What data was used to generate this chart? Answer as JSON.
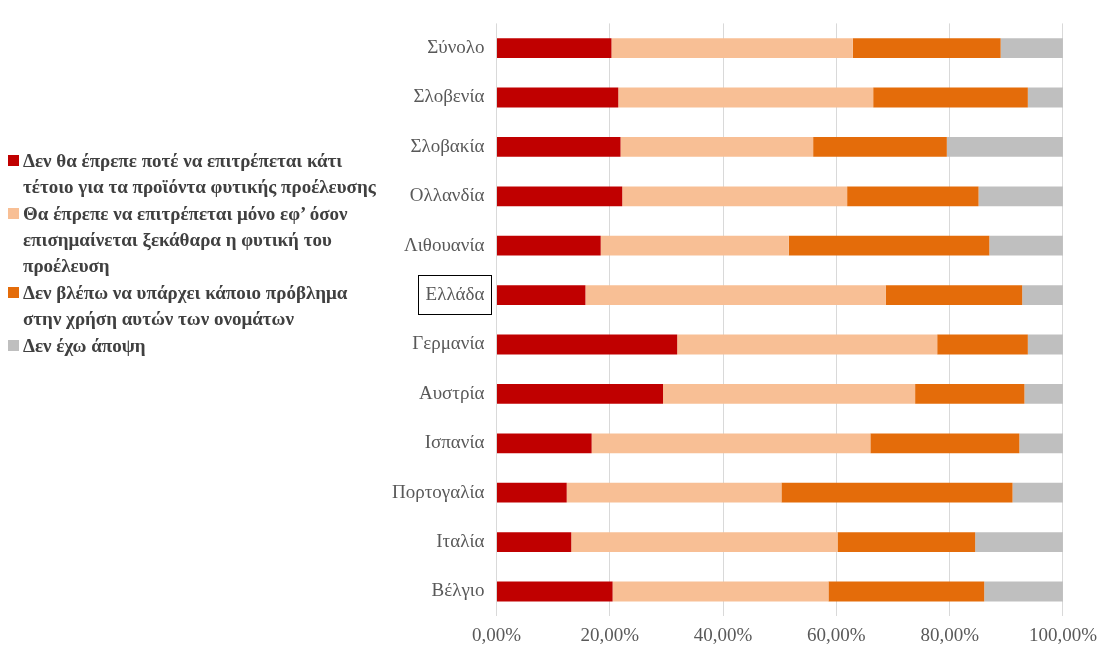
{
  "chart_data": {
    "type": "bar",
    "orientation": "horizontal",
    "stacked": true,
    "categories": [
      "Σύνολο",
      "Σλοβενία",
      "Σλοβακία",
      "Ολλανδία",
      "Λιθουανία",
      "Ελλάδα",
      "Γερμανία",
      "Αυστρία",
      "Ισπανία",
      "Πορτογαλία",
      "Ιταλία",
      "Βέλγιο"
    ],
    "series": [
      {
        "name": "Δεν θα έπρεπε ποτέ να επιτρέπεται κάτι τέτοιο για τα προϊόντα φυτικής προέλευσης",
        "color": "#c00000",
        "values": [
          20.3,
          21.5,
          21.9,
          22.2,
          18.4,
          15.7,
          31.9,
          29.4,
          16.8,
          12.4,
          13.2,
          20.5
        ]
      },
      {
        "name": "Θα έπρεπε να επιτρέπεται μόνο εφ’ όσον επισημαίνεται ξεκάθαρα η φυτική του προέλευση",
        "color": "#f8bf95",
        "values": [
          42.6,
          45.0,
          34.0,
          39.7,
          33.2,
          53.0,
          45.9,
          44.5,
          49.2,
          37.9,
          47.0,
          38.1
        ]
      },
      {
        "name": "Δεν βλέπω να υπάρχει κάποιο πρόβλημα στην χρήση αυτών των ονομάτων",
        "color": "#e46c0a",
        "values": [
          26.1,
          27.3,
          23.6,
          23.2,
          35.4,
          24.1,
          16.0,
          19.3,
          26.3,
          40.8,
          24.3,
          27.5
        ]
      },
      {
        "name": "Δεν έχω άποψη",
        "color": "#bfbfbf",
        "values": [
          11.0,
          6.2,
          20.5,
          14.9,
          13.0,
          7.2,
          6.2,
          6.8,
          7.7,
          8.9,
          15.5,
          13.9
        ]
      }
    ],
    "xlim": [
      0,
      100
    ],
    "xticks": [
      {
        "value": 0,
        "label": "0,00%"
      },
      {
        "value": 20,
        "label": "20,00%"
      },
      {
        "value": 40,
        "label": "40,00%"
      },
      {
        "value": 60,
        "label": "60,00%"
      },
      {
        "value": 80,
        "label": "80,00%"
      },
      {
        "value": 100,
        "label": "100,00%"
      }
    ],
    "grid": "x",
    "legend": "left"
  }
}
